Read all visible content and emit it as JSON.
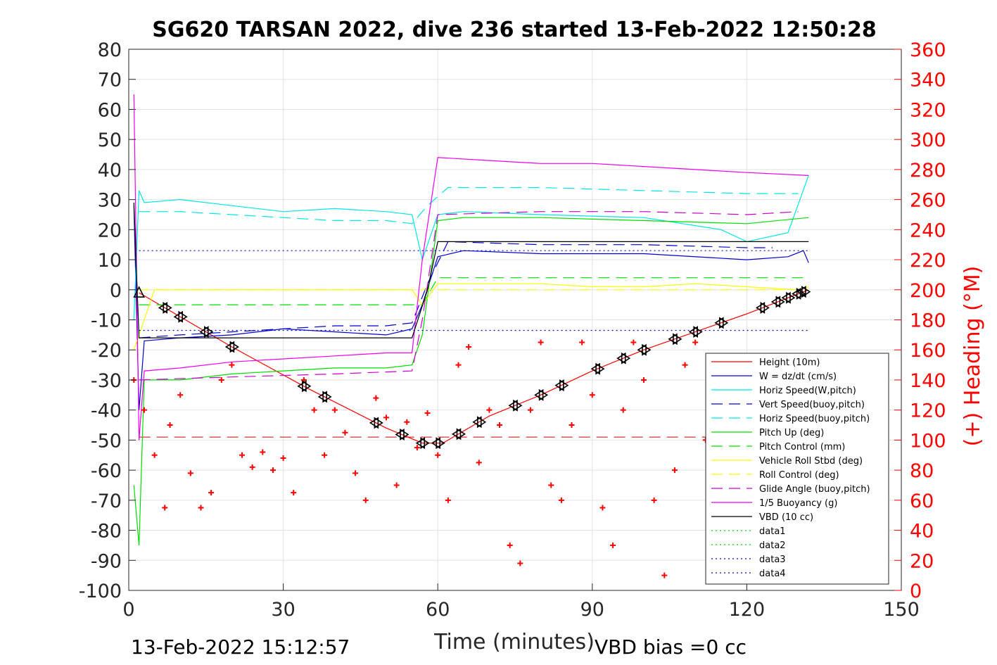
{
  "chart_data": {
    "type": "line",
    "title": "SG620 TARSAN 2022, dive 236 started 13-Feb-2022 12:50:28",
    "xlabel": "Time (minutes)",
    "ylabel": "",
    "y2label": "(+) Heading (°M)",
    "xlim": [
      0,
      150
    ],
    "ylim": [
      -100,
      80
    ],
    "y2lim": [
      0,
      360
    ],
    "xticks": [
      "0",
      "30",
      "60",
      "90",
      "120",
      "150"
    ],
    "yticks": [
      "80",
      "70",
      "60",
      "50",
      "40",
      "30",
      "20",
      "10",
      "0",
      "-10",
      "-20",
      "-30",
      "-40",
      "-50",
      "-60",
      "-70",
      "-80",
      "-90",
      "-100"
    ],
    "y2ticks": [
      "360",
      "340",
      "320",
      "300",
      "280",
      "260",
      "240",
      "220",
      "200",
      "180",
      "160",
      "140",
      "120",
      "100",
      "80",
      "60",
      "40",
      "20",
      "0"
    ],
    "grid": true,
    "legend_position": "bottom-right",
    "footer_left": "13-Feb-2022 15:12:57",
    "footer_right": "VBD bias =0 cc",
    "colors": {
      "height": "#ff0000",
      "w": "#0000cd",
      "horiz_speed": "#00e5e5",
      "vert_speed_model": "#0000cd",
      "horiz_speed_model": "#00e5e5",
      "pitch": "#00dd00",
      "pitch_control": "#00dd00",
      "roll": "#ffff00",
      "roll_control": "#ffff00",
      "glide_angle": "#cc00cc",
      "buoyancy": "#ee00ee",
      "vbd": "#000000",
      "heading": "#ff0000"
    },
    "series": [
      {
        "name": "Height (10m)",
        "style": "solid",
        "color": "#ff0000",
        "x": [
          2,
          20,
          35,
          50,
          57,
          61,
          70,
          80,
          90,
          100,
          110,
          120,
          126,
          132
        ],
        "y": [
          -1,
          -19,
          -33,
          -46,
          -51,
          -51,
          -42,
          -35,
          -27,
          -20,
          -14,
          -8,
          -4,
          0
        ]
      },
      {
        "name": "W = dz/dt (cm/s)",
        "style": "solid",
        "color": "#0000cd",
        "x": [
          1,
          2,
          3,
          10,
          20,
          30,
          40,
          50,
          55,
          57,
          60,
          65,
          80,
          100,
          120,
          128,
          131,
          132
        ],
        "y": [
          28,
          -40,
          -17,
          -16,
          -15,
          -13,
          -14,
          -15,
          -13,
          -5,
          11,
          13,
          12,
          12,
          10,
          11,
          13,
          9
        ]
      },
      {
        "name": "Horiz Speed(W,pitch)",
        "style": "solid",
        "color": "#00e5e5",
        "x": [
          1,
          2,
          3,
          10,
          20,
          30,
          40,
          50,
          55,
          57,
          60,
          65,
          80,
          100,
          115,
          120,
          128,
          132
        ],
        "y": [
          -10,
          33,
          29,
          30,
          28,
          26,
          27,
          26,
          25,
          10,
          25,
          26,
          25,
          24,
          20,
          16,
          19,
          38
        ]
      },
      {
        "name": "Vert Speed(buoy,pitch)",
        "style": "dash",
        "color": "#0000cd",
        "x": [
          2,
          10,
          20,
          30,
          40,
          50,
          55,
          58,
          62,
          80,
          100,
          120,
          125
        ],
        "y": [
          -16,
          -15,
          -14,
          -13,
          -12,
          -12,
          -11,
          2,
          16,
          15,
          15,
          14,
          14
        ]
      },
      {
        "name": "Horiz Speed(buoy,pitch)",
        "style": "dash",
        "color": "#00e5e5",
        "x": [
          2,
          10,
          20,
          30,
          40,
          50,
          55,
          58,
          62,
          80,
          100,
          120,
          130
        ],
        "y": [
          26,
          26,
          25,
          24,
          23,
          23,
          22,
          28,
          34,
          34,
          33,
          32,
          32
        ]
      },
      {
        "name": "Pitch Up (deg)",
        "style": "solid",
        "color": "#00dd00",
        "x": [
          1,
          2,
          3,
          10,
          20,
          30,
          40,
          50,
          55,
          57,
          60,
          65,
          80,
          100,
          120,
          132
        ],
        "y": [
          -65,
          -85,
          -30,
          -30,
          -28,
          -27,
          -26,
          -26,
          -25,
          -15,
          23,
          24,
          24,
          23,
          22,
          24
        ]
      },
      {
        "name": "Pitch Control (mm)",
        "style": "dash",
        "color": "#00dd00",
        "x": [
          2,
          55,
          57,
          60,
          120,
          132
        ],
        "y": [
          -5,
          -5,
          -5,
          4,
          4,
          4
        ]
      },
      {
        "name": "Vehicle Roll Stbd (deg)",
        "style": "solid",
        "color": "#ffff00",
        "x": [
          1,
          5,
          10,
          20,
          30,
          40,
          50,
          55,
          57,
          60,
          70,
          80,
          90,
          100,
          110,
          120,
          130,
          132
        ],
        "y": [
          -20,
          0,
          0,
          0,
          0,
          0,
          0,
          0,
          -5,
          2,
          2,
          2,
          1,
          1,
          2,
          1,
          0,
          1
        ]
      },
      {
        "name": "Roll Control (deg)",
        "style": "dash",
        "color": "#ffff00",
        "x": [
          2,
          132
        ],
        "y": [
          0,
          0
        ]
      },
      {
        "name": "Glide Angle (buoy,pitch)",
        "style": "dash",
        "color": "#cc00cc",
        "x": [
          2,
          20,
          40,
          55,
          57,
          60,
          80,
          100,
          120,
          130
        ],
        "y": [
          -30,
          -29,
          -28,
          -27,
          -10,
          25,
          26,
          26,
          25,
          26
        ]
      },
      {
        "name": "1/5 Buoyancy (g)",
        "style": "solid",
        "color": "#ee00ee",
        "x": [
          1,
          2,
          3,
          10,
          20,
          30,
          40,
          50,
          55,
          57,
          60,
          70,
          80,
          90,
          100,
          110,
          120,
          132
        ],
        "y": [
          65,
          -50,
          -27,
          -26,
          -24,
          -23,
          -22,
          -21,
          -21,
          10,
          44,
          43,
          42,
          42,
          41,
          40,
          39,
          38
        ]
      },
      {
        "name": "VBD (10 cc)",
        "style": "solid",
        "color": "#000000",
        "x": [
          1,
          2,
          10,
          30,
          55,
          58,
          60,
          80,
          100,
          120,
          132
        ],
        "y": [
          29,
          -16,
          -16,
          -16,
          -16,
          0,
          16,
          16,
          16,
          16,
          16
        ]
      },
      {
        "name": "data1",
        "style": "dot",
        "color": "#00dd00",
        "x": [],
        "y": []
      },
      {
        "name": "data2",
        "style": "dot",
        "color": "#00dd00",
        "x": [],
        "y": []
      },
      {
        "name": "data3",
        "style": "dot",
        "color": "#0000cd",
        "x": [
          2,
          132
        ],
        "y": [
          -13.5,
          -13.5
        ]
      },
      {
        "name": "data4",
        "style": "dot",
        "color": "#0000cd",
        "x": [
          2,
          132
        ],
        "y": [
          13,
          13
        ]
      }
    ],
    "reference_lines": [
      {
        "axis": "y",
        "value": -49,
        "style": "dash",
        "color": "#cc0000"
      }
    ],
    "heading": {
      "axis": "right",
      "marker": "+",
      "color": "#ff0000",
      "x": [
        1,
        3,
        5,
        7,
        8,
        10,
        12,
        14,
        16,
        18,
        20,
        22,
        24,
        26,
        28,
        30,
        32,
        34,
        36,
        38,
        40,
        42,
        44,
        46,
        48,
        50,
        52,
        54,
        56,
        58,
        60,
        62,
        64,
        66,
        68,
        70,
        72,
        74,
        76,
        78,
        80,
        82,
        84,
        86,
        88,
        90,
        92,
        94,
        96,
        98,
        100,
        102,
        104,
        106,
        108,
        110,
        112
      ],
      "y": [
        140,
        120,
        90,
        55,
        110,
        130,
        78,
        55,
        65,
        140,
        150,
        90,
        82,
        92,
        80,
        88,
        65,
        140,
        120,
        90,
        120,
        105,
        78,
        60,
        128,
        115,
        70,
        112,
        95,
        118,
        90,
        60,
        150,
        162,
        85,
        120,
        110,
        30,
        18,
        120,
        165,
        70,
        60,
        110,
        165,
        130,
        55,
        30,
        120,
        165,
        140,
        60,
        10,
        80,
        150,
        165,
        100
      ]
    },
    "height_markers": [
      2,
      7,
      10,
      15,
      20,
      34,
      38,
      48,
      53,
      57,
      60,
      64,
      68,
      75,
      80,
      84,
      91,
      96,
      100,
      106,
      110,
      115,
      123,
      126,
      128,
      130,
      131
    ]
  }
}
